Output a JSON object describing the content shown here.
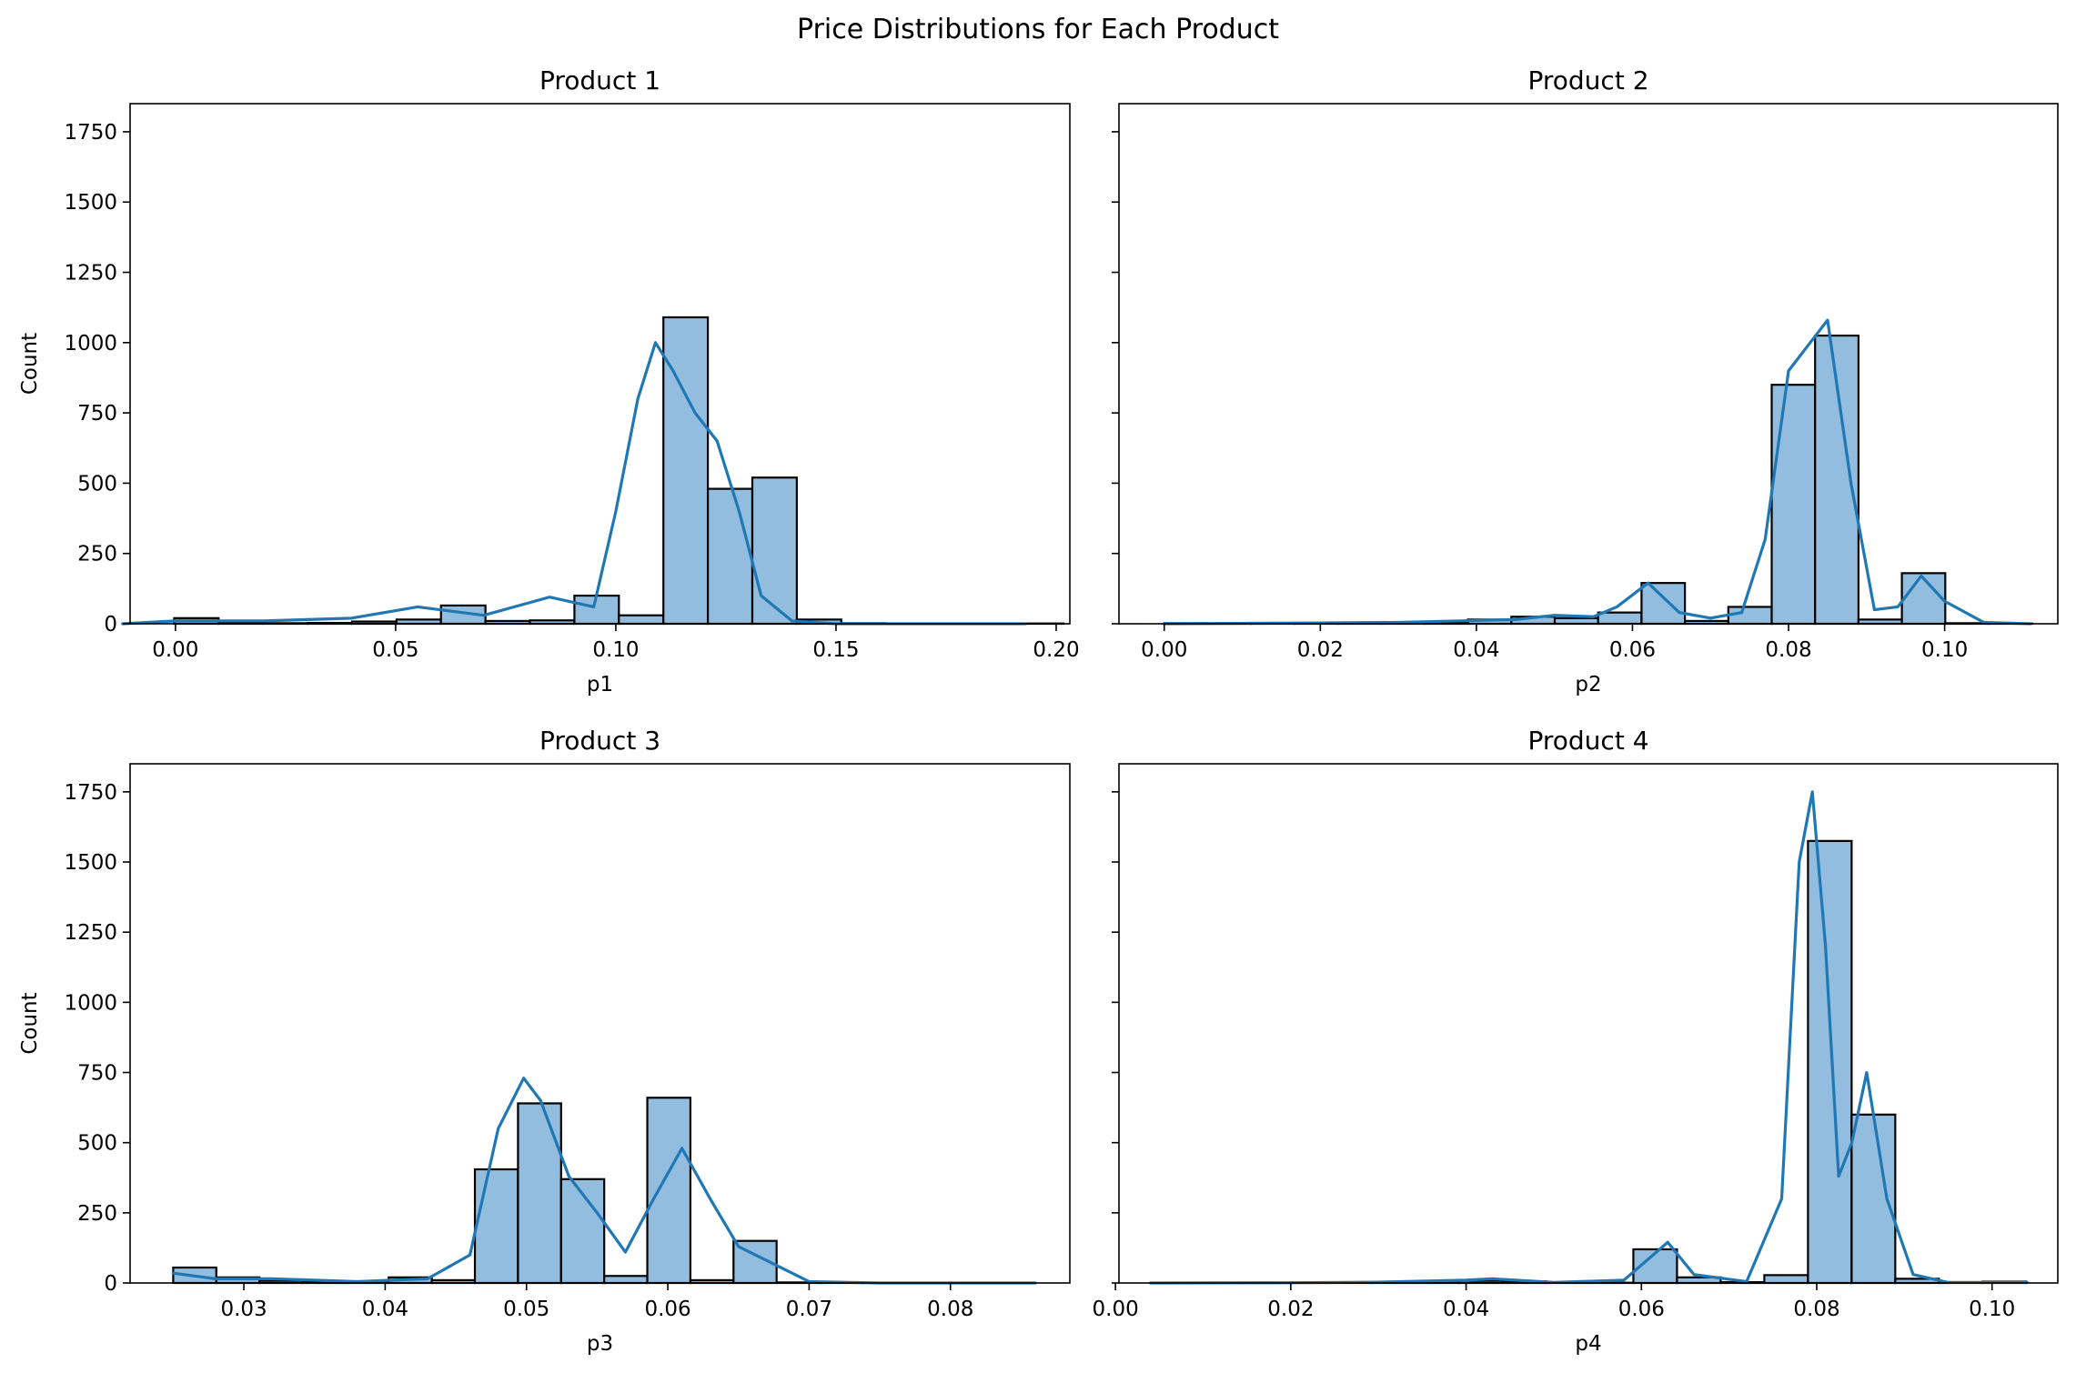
{
  "figure": {
    "suptitle": "Price Distributions for Each Product",
    "bar_color": "#92bddf",
    "bar_edge_color": "#000000",
    "kde_color": "#1f77b4"
  },
  "chart_data": [
    {
      "type": "bar",
      "title": "Product 1",
      "xlabel": "p1",
      "ylabel": "Count",
      "xlim": [
        -0.0103,
        0.2031
      ],
      "ylim": [
        0,
        1850
      ],
      "xticks": [
        0.0,
        0.05,
        0.1,
        0.15,
        0.2
      ],
      "xtick_labels": [
        "0.00",
        "0.05",
        "0.10",
        "0.15",
        "0.20"
      ],
      "yticks": [
        0,
        250,
        500,
        750,
        1000,
        1250,
        1500,
        1750
      ],
      "ytick_labels": [
        "0",
        "250",
        "500",
        "750",
        "1000",
        "1250",
        "1500",
        "1750"
      ],
      "bin_start": -0.0003,
      "bin_width": 0.0101,
      "values": [
        20,
        3,
        2,
        3,
        8,
        15,
        65,
        10,
        12,
        100,
        30,
        1090,
        480,
        520,
        15,
        2,
        1,
        1,
        1,
        1
      ],
      "kde": {
        "x": [
          -0.012,
          0.0,
          0.02,
          0.04,
          0.055,
          0.07,
          0.085,
          0.095,
          0.1,
          0.105,
          0.109,
          0.113,
          0.118,
          0.123,
          0.128,
          0.133,
          0.14,
          0.15,
          0.193
        ],
        "y": [
          0,
          10,
          10,
          20,
          60,
          30,
          95,
          60,
          400,
          800,
          1000,
          900,
          750,
          650,
          400,
          100,
          10,
          0,
          0
        ]
      }
    },
    {
      "type": "bar",
      "title": "Product 2",
      "xlabel": "p2",
      "ylabel": "",
      "xlim": [
        -0.0058,
        0.1145
      ],
      "ylim": [
        0,
        1850
      ],
      "xticks": [
        0.0,
        0.02,
        0.04,
        0.06,
        0.08,
        0.1
      ],
      "xtick_labels": [
        "0.00",
        "0.02",
        "0.04",
        "0.06",
        "0.08",
        "0.10"
      ],
      "yticks": [
        0,
        250,
        500,
        750,
        1000,
        1250,
        1500,
        1750
      ],
      "ytick_labels": [
        "",
        "",
        "",
        "",
        "",
        "",
        "",
        ""
      ],
      "bin_start": 0.0,
      "bin_width": 0.00556,
      "values": [
        2,
        1,
        1,
        2,
        3,
        3,
        3,
        15,
        25,
        20,
        40,
        145,
        10,
        60,
        850,
        1025,
        15,
        180,
        2,
        1
      ],
      "kde": {
        "x": [
          0.0,
          0.02,
          0.03,
          0.045,
          0.05,
          0.055,
          0.058,
          0.062,
          0.066,
          0.07,
          0.074,
          0.077,
          0.08,
          0.085,
          0.088,
          0.091,
          0.094,
          0.097,
          0.1,
          0.105,
          0.111
        ],
        "y": [
          0,
          3,
          5,
          15,
          30,
          25,
          60,
          145,
          40,
          20,
          40,
          300,
          900,
          1080,
          500,
          50,
          60,
          170,
          80,
          5,
          0
        ]
      }
    },
    {
      "type": "bar",
      "title": "Product 3",
      "xlabel": "p3",
      "ylabel": "Count",
      "xlim": [
        0.02195,
        0.08845
      ],
      "ylim": [
        0,
        1850
      ],
      "xticks": [
        0.03,
        0.04,
        0.05,
        0.06,
        0.07,
        0.08
      ],
      "xtick_labels": [
        "0.03",
        "0.04",
        "0.05",
        "0.06",
        "0.07",
        "0.08"
      ],
      "yticks": [
        0,
        250,
        500,
        750,
        1000,
        1250,
        1500,
        1750
      ],
      "ytick_labels": [
        "0",
        "250",
        "500",
        "750",
        "1000",
        "1250",
        "1500",
        "1750"
      ],
      "bin_start": 0.025,
      "bin_width": 0.00305,
      "values": [
        55,
        20,
        8,
        3,
        3,
        20,
        10,
        405,
        640,
        370,
        25,
        660,
        10,
        150,
        2,
        1,
        1,
        1,
        1,
        1
      ],
      "kde": {
        "x": [
          0.025,
          0.028,
          0.032,
          0.038,
          0.043,
          0.046,
          0.048,
          0.0498,
          0.051,
          0.053,
          0.055,
          0.057,
          0.059,
          0.061,
          0.063,
          0.065,
          0.067,
          0.07,
          0.075,
          0.086
        ],
        "y": [
          35,
          15,
          15,
          5,
          15,
          100,
          550,
          730,
          650,
          380,
          250,
          110,
          300,
          480,
          300,
          130,
          80,
          5,
          0,
          0
        ]
      }
    },
    {
      "type": "bar",
      "title": "Product 4",
      "xlabel": "p4",
      "ylabel": "",
      "xlim": [
        0.0004,
        0.1075
      ],
      "ylim": [
        0,
        1850
      ],
      "xticks": [
        0.0,
        0.02,
        0.04,
        0.06,
        0.08,
        0.1
      ],
      "xtick_labels": [
        "0.00",
        "0.02",
        "0.04",
        "0.06",
        "0.08",
        "0.10"
      ],
      "yticks": [
        0,
        250,
        500,
        750,
        1000,
        1250,
        1500,
        1750
      ],
      "ytick_labels": [
        "",
        "",
        "",
        "",
        "",
        "",
        "",
        ""
      ],
      "bin_start": 0.0043,
      "bin_width": 0.00498,
      "values": [
        1,
        1,
        1,
        1,
        1,
        1,
        1,
        8,
        6,
        2,
        1,
        120,
        20,
        3,
        28,
        1575,
        600,
        15,
        2,
        5
      ],
      "kde": {
        "x": [
          0.004,
          0.02,
          0.03,
          0.04,
          0.043,
          0.05,
          0.058,
          0.063,
          0.066,
          0.072,
          0.076,
          0.078,
          0.0795,
          0.081,
          0.0825,
          0.084,
          0.0857,
          0.088,
          0.091,
          0.095,
          0.104
        ],
        "y": [
          0,
          1,
          3,
          10,
          15,
          2,
          10,
          145,
          30,
          5,
          300,
          1500,
          1750,
          1200,
          380,
          500,
          750,
          300,
          30,
          2,
          2
        ]
      }
    }
  ]
}
